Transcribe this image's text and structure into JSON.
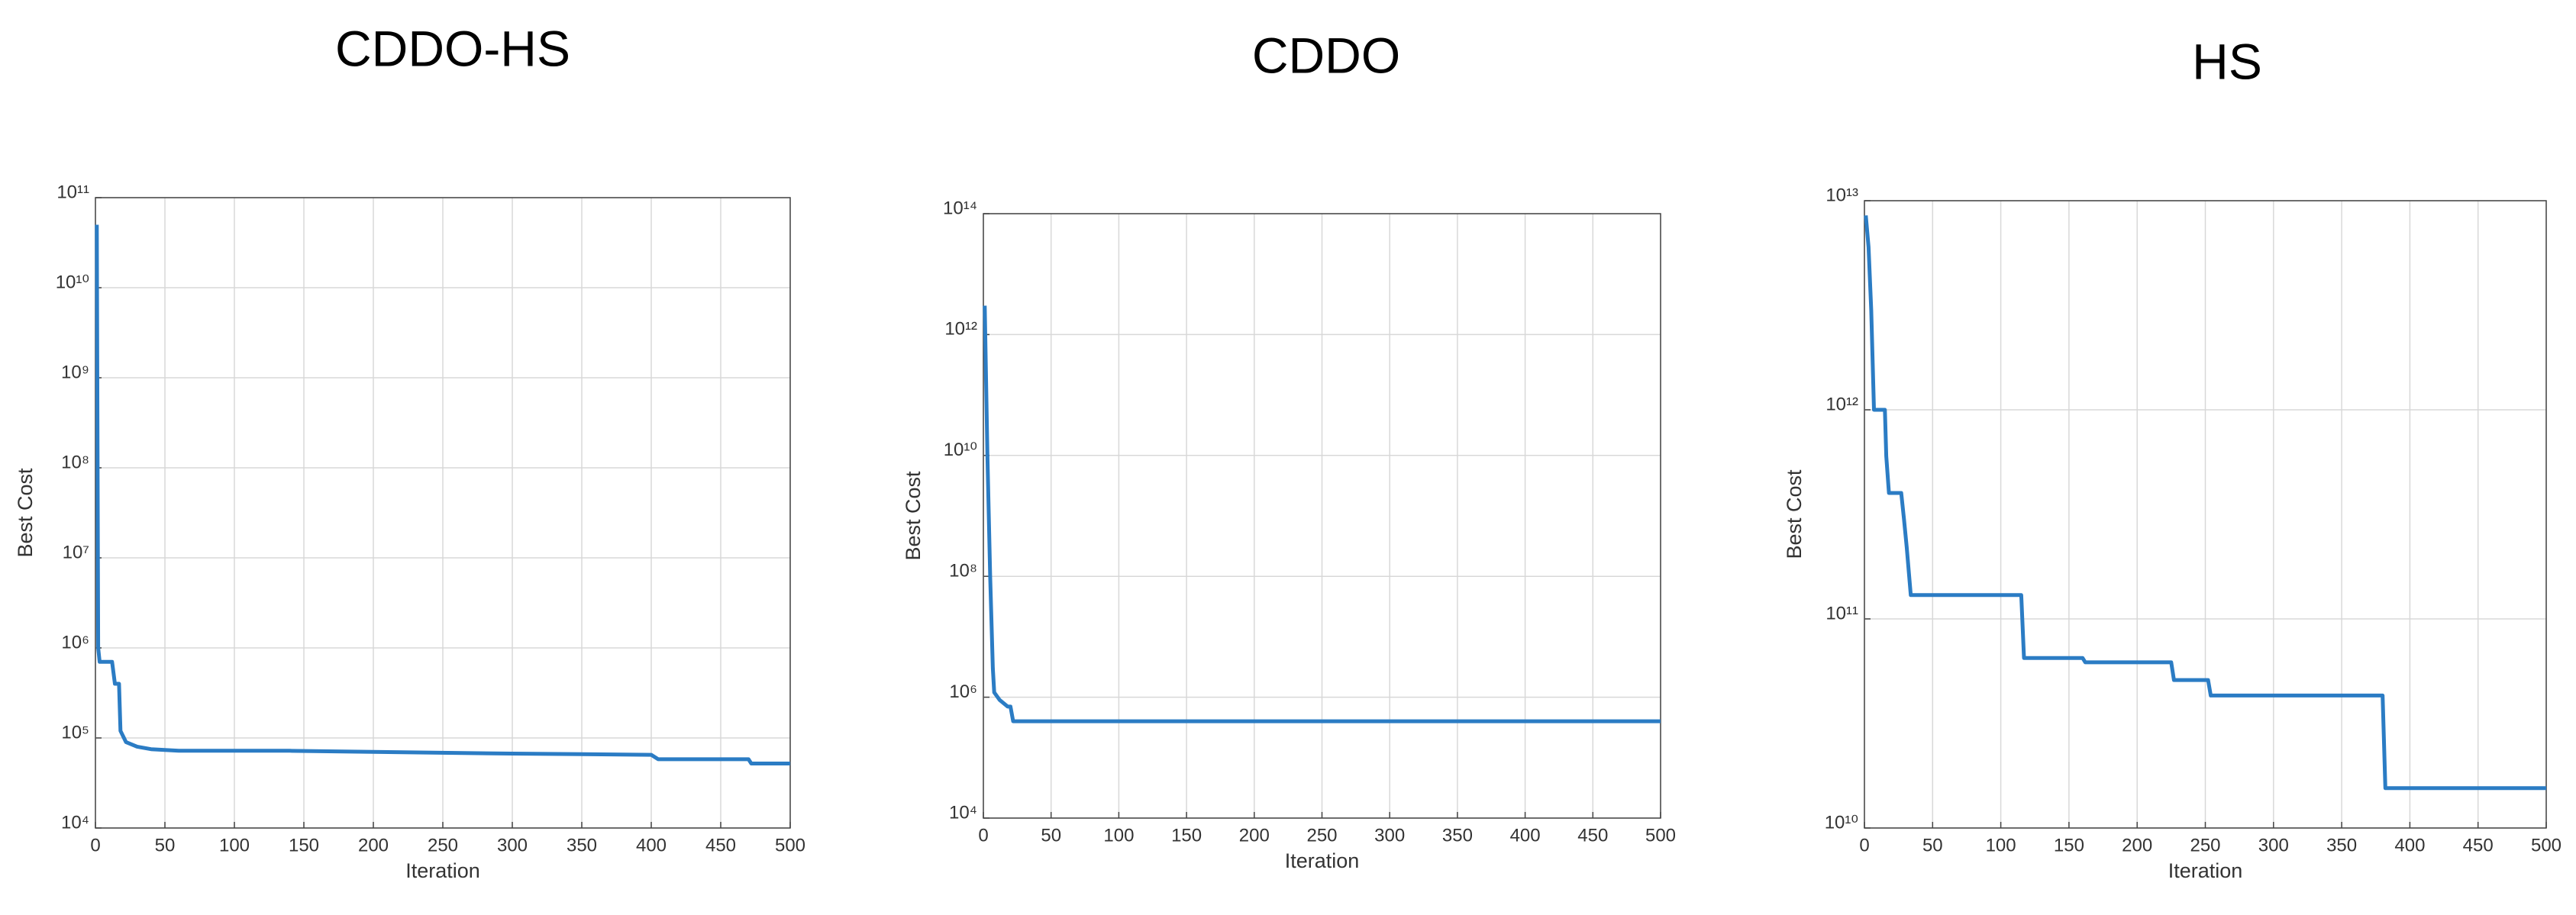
{
  "chart_data": [
    {
      "type": "line",
      "title": "CDDO-HS",
      "xlabel": "Iteration",
      "ylabel": "Best Cost",
      "log_y": true,
      "grid": true,
      "color": "#2b7cc4",
      "x": [
        1,
        2,
        3,
        12,
        14,
        17,
        18,
        22,
        30,
        40,
        60,
        140,
        200,
        300,
        400,
        405,
        470,
        472,
        500
      ],
      "values": [
        50000000000,
        1000000,
        700000,
        700000,
        400000,
        400000,
        120000,
        90000,
        80000,
        75000,
        72000,
        72000,
        70000,
        67000,
        65000,
        58000,
        58000,
        52000,
        52000
      ],
      "xlim": [
        0,
        500
      ],
      "xticks": [
        0,
        50,
        100,
        150,
        200,
        250,
        300,
        350,
        400,
        450,
        500
      ],
      "ylim": [
        10000,
        100000000000
      ],
      "yticks": [
        {
          "value": 10000,
          "label": "10⁴"
        },
        {
          "value": 100000,
          "label": "10⁵"
        },
        {
          "value": 1000000,
          "label": "10⁶"
        },
        {
          "value": 10000000,
          "label": "10⁷"
        },
        {
          "value": 100000000,
          "label": "10⁸"
        },
        {
          "value": 1000000000,
          "label": "10⁹"
        },
        {
          "value": 10000000000,
          "label": "10¹⁰"
        },
        {
          "value": 100000000000,
          "label": "10¹¹"
        }
      ]
    },
    {
      "type": "line",
      "title": "CDDO",
      "xlabel": "Iteration",
      "ylabel": "Best Cost",
      "log_y": true,
      "grid": true,
      "color": "#2b7cc4",
      "x": [
        1,
        3,
        5,
        7,
        8,
        12,
        18,
        20,
        22,
        500
      ],
      "values": [
        3000000000000,
        10000000000,
        100000000,
        3000000,
        1200000,
        900000,
        700000,
        700000,
        400000,
        400000
      ],
      "xlim": [
        0,
        500
      ],
      "xticks": [
        0,
        50,
        100,
        150,
        200,
        250,
        300,
        350,
        400,
        450,
        500
      ],
      "ylim": [
        10000,
        100000000000000
      ],
      "yticks": [
        {
          "value": 10000,
          "label": "10⁴"
        },
        {
          "value": 1000000,
          "label": "10⁶"
        },
        {
          "value": 100000000,
          "label": "10⁸"
        },
        {
          "value": 10000000000,
          "label": "10¹⁰"
        },
        {
          "value": 1000000000000,
          "label": "10¹²"
        },
        {
          "value": 100000000000000,
          "label": "10¹⁴"
        }
      ]
    },
    {
      "type": "line",
      "title": "HS",
      "xlabel": "Iteration",
      "ylabel": "Best Cost",
      "log_y": true,
      "grid": true,
      "color": "#2b7cc4",
      "x": [
        1,
        3,
        5,
        7,
        15,
        16,
        18,
        27,
        29,
        31,
        34,
        115,
        117,
        160,
        162,
        225,
        227,
        252,
        254,
        380,
        382,
        500
      ],
      "values": [
        8500000000000,
        6000000000000,
        3000000000000,
        1000000000000,
        1000000000000,
        600000000000,
        400000000000,
        400000000000,
        300000000000,
        220000000000,
        130000000000,
        130000000000,
        65000000000,
        65000000000,
        62000000000,
        62000000000,
        51000000000,
        51000000000,
        43000000000,
        43000000000,
        15500000000,
        15500000000
      ],
      "xlim": [
        0,
        500
      ],
      "xticks": [
        0,
        50,
        100,
        150,
        200,
        250,
        300,
        350,
        400,
        450,
        500
      ],
      "ylim": [
        10000000000,
        10000000000000
      ],
      "yticks": [
        {
          "value": 10000000000,
          "label": "10¹⁰"
        },
        {
          "value": 100000000000,
          "label": "10¹¹"
        },
        {
          "value": 1000000000000,
          "label": "10¹²"
        },
        {
          "value": 10000000000000,
          "label": "10¹³"
        }
      ]
    }
  ]
}
